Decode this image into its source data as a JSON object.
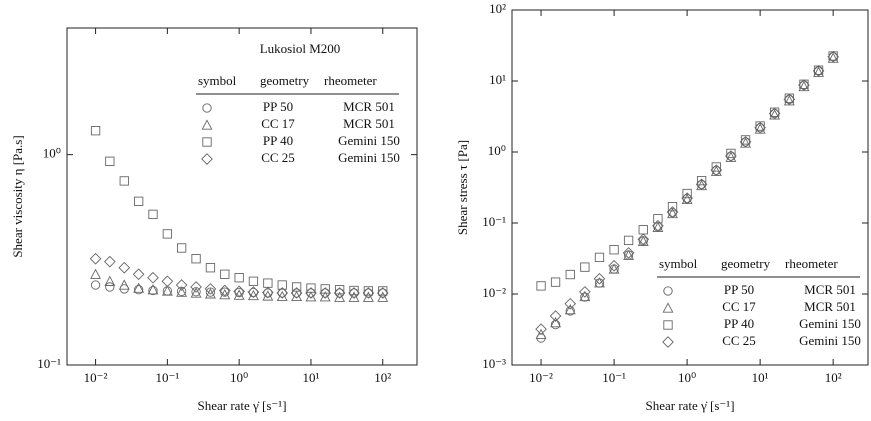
{
  "chart_data": [
    {
      "type": "scatter",
      "annotation": "Lukosiol M200",
      "xlabel": "Shear rate γ̇ [s⁻¹]",
      "ylabel": "Shear viscosity η [Pa.s]",
      "xscale": "log",
      "yscale": "log",
      "xlim": [
        0.004,
        300
      ],
      "ylim": [
        0.1,
        4
      ],
      "xticks": [
        {
          "value": 0.01,
          "label": "10⁻²"
        },
        {
          "value": 0.1,
          "label": "10⁻¹"
        },
        {
          "value": 1,
          "label": "10⁰"
        },
        {
          "value": 10,
          "label": "10¹"
        },
        {
          "value": 100,
          "label": "10²"
        }
      ],
      "yticks": [
        {
          "value": 0.1,
          "label": "10⁻¹"
        },
        {
          "value": 1,
          "label": "10⁰"
        }
      ],
      "legend": "upper right",
      "legend_columns": [
        "symbol",
        "geometry",
        "rheometer"
      ],
      "x": [
        0.01,
        0.0158,
        0.0251,
        0.0398,
        0.0631,
        0.1,
        0.158,
        0.251,
        0.398,
        0.631,
        1,
        1.58,
        2.51,
        3.98,
        6.31,
        10,
        15.8,
        25.1,
        39.8,
        63.1,
        100
      ],
      "series": [
        {
          "name": "PP 50",
          "rheometer": "MCR 501",
          "marker": "circle",
          "color": "#666666",
          "values": [
            0.24,
            0.235,
            0.23,
            0.228,
            0.226,
            0.225,
            0.224,
            0.223,
            0.222,
            0.222,
            0.221,
            0.221,
            0.22,
            0.22,
            0.22,
            0.22,
            0.22,
            0.22,
            0.22,
            0.22,
            0.22
          ]
        },
        {
          "name": "CC 17",
          "rheometer": "MCR 501",
          "marker": "triangle",
          "color": "#666666",
          "values": [
            0.27,
            0.25,
            0.24,
            0.232,
            0.228,
            0.225,
            0.222,
            0.22,
            0.218,
            0.216,
            0.215,
            0.214,
            0.213,
            0.212,
            0.212,
            0.211,
            0.211,
            0.21,
            0.21,
            0.21,
            0.21
          ]
        },
        {
          "name": "PP 40",
          "rheometer": "Gemini 150",
          "marker": "square",
          "color": "#666666",
          "values": [
            1.3,
            0.93,
            0.75,
            0.6,
            0.52,
            0.42,
            0.36,
            0.32,
            0.29,
            0.27,
            0.26,
            0.25,
            0.245,
            0.24,
            0.235,
            0.232,
            0.23,
            0.228,
            0.226,
            0.225,
            0.225
          ]
        },
        {
          "name": "CC 25",
          "rheometer": "Gemini 150",
          "marker": "diamond",
          "color": "#666666",
          "values": [
            0.32,
            0.31,
            0.29,
            0.27,
            0.26,
            0.25,
            0.24,
            0.235,
            0.23,
            0.226,
            0.224,
            0.222,
            0.221,
            0.22,
            0.22,
            0.22,
            0.22,
            0.22,
            0.22,
            0.22,
            0.22
          ]
        }
      ]
    },
    {
      "type": "scatter",
      "xlabel": "Shear rate γ̇ [s⁻¹]",
      "ylabel": "Shear stress τ [Pa]",
      "xscale": "log",
      "yscale": "log",
      "xlim": [
        0.004,
        300
      ],
      "ylim": [
        0.001,
        100
      ],
      "xticks": [
        {
          "value": 0.01,
          "label": "10⁻²"
        },
        {
          "value": 0.1,
          "label": "10⁻¹"
        },
        {
          "value": 1,
          "label": "10⁰"
        },
        {
          "value": 10,
          "label": "10¹"
        },
        {
          "value": 100,
          "label": "10²"
        }
      ],
      "yticks": [
        {
          "value": 0.001,
          "label": "10⁻³"
        },
        {
          "value": 0.01,
          "label": "10⁻²"
        },
        {
          "value": 0.1,
          "label": "10⁻¹"
        },
        {
          "value": 1,
          "label": "10⁰"
        },
        {
          "value": 10,
          "label": "10¹"
        },
        {
          "value": 100,
          "label": "10²"
        }
      ],
      "legend": "lower right",
      "legend_columns": [
        "symbol",
        "geometry",
        "rheometer"
      ],
      "x": [
        0.01,
        0.0158,
        0.0251,
        0.0398,
        0.0631,
        0.1,
        0.158,
        0.251,
        0.398,
        0.631,
        1,
        1.58,
        2.51,
        3.98,
        6.31,
        10,
        15.8,
        25.1,
        39.8,
        63.1,
        100
      ],
      "series": [
        {
          "name": "PP 50",
          "rheometer": "MCR 501",
          "marker": "circle",
          "color": "#666666",
          "values": [
            0.0024,
            0.00371,
            0.00578,
            0.00907,
            0.0143,
            0.0225,
            0.0354,
            0.056,
            0.0884,
            0.14,
            0.221,
            0.349,
            0.552,
            0.876,
            1.39,
            2.2,
            3.48,
            5.52,
            8.76,
            13.9,
            22
          ]
        },
        {
          "name": "CC 17",
          "rheometer": "MCR 501",
          "marker": "triangle",
          "color": "#666666",
          "values": [
            0.0027,
            0.00395,
            0.00602,
            0.00923,
            0.0144,
            0.0225,
            0.0351,
            0.0552,
            0.0868,
            0.136,
            0.215,
            0.338,
            0.535,
            0.844,
            1.34,
            2.11,
            3.33,
            5.27,
            8.36,
            13.3,
            21
          ]
        },
        {
          "name": "PP 40",
          "rheometer": "Gemini 150",
          "marker": "square",
          "color": "#666666",
          "values": [
            0.013,
            0.0147,
            0.0188,
            0.0239,
            0.0328,
            0.042,
            0.0569,
            0.0803,
            0.115,
            0.17,
            0.26,
            0.395,
            0.615,
            0.955,
            1.48,
            2.32,
            3.63,
            5.72,
            8.99,
            14.2,
            22.5
          ]
        },
        {
          "name": "CC 25",
          "rheometer": "Gemini 150",
          "marker": "diamond",
          "color": "#666666",
          "values": [
            0.0032,
            0.0049,
            0.00728,
            0.0107,
            0.0164,
            0.025,
            0.0379,
            0.059,
            0.0915,
            0.143,
            0.224,
            0.351,
            0.555,
            0.876,
            1.39,
            2.2,
            3.48,
            5.52,
            8.76,
            13.9,
            22
          ]
        }
      ]
    }
  ]
}
